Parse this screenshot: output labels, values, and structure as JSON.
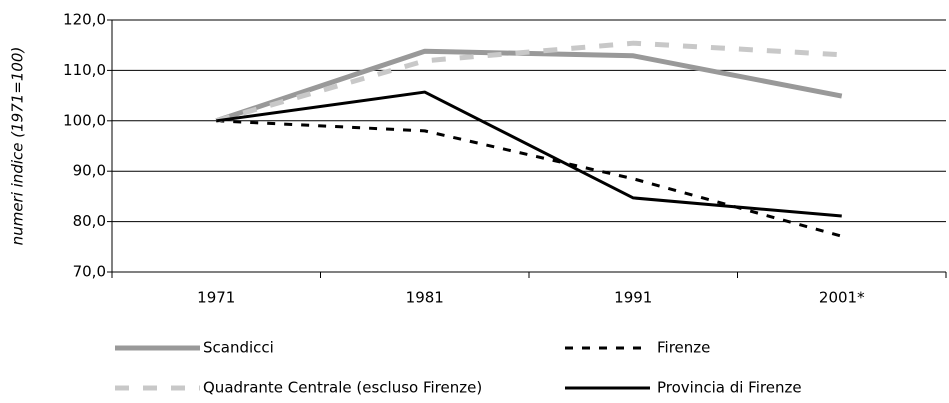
{
  "chart_data": {
    "type": "line",
    "y_label": "numeri indice (1971=100)",
    "categories": [
      "1971",
      "1981",
      "1991",
      "2001*"
    ],
    "series": [
      {
        "name": "Scandicci",
        "color": "#999999",
        "style": "solid",
        "values": [
          100,
          113.8,
          112.9,
          104.9
        ]
      },
      {
        "name": "Firenze",
        "color": "#000000",
        "style": "dashed",
        "values": [
          100,
          98.0,
          88.5,
          77.1
        ]
      },
      {
        "name": "Quadrante Centrale (escluso Firenze)",
        "color": "#c8c8c8",
        "style": "dashed",
        "values": [
          100,
          111.9,
          115.4,
          113.1
        ]
      },
      {
        "name": "Provincia di Firenze",
        "color": "#000000",
        "style": "solid",
        "values": [
          100,
          105.7,
          84.7,
          81.1
        ]
      }
    ],
    "ylim": [
      70,
      120
    ],
    "yticks": [
      {
        "value": 70,
        "label": "70,0"
      },
      {
        "value": 80,
        "label": "80,0"
      },
      {
        "value": 90,
        "label": "90,0"
      },
      {
        "value": 100,
        "label": "100,0"
      },
      {
        "value": 110,
        "label": "110,0"
      },
      {
        "value": 120,
        "label": "120,0"
      }
    ],
    "grid": true
  }
}
